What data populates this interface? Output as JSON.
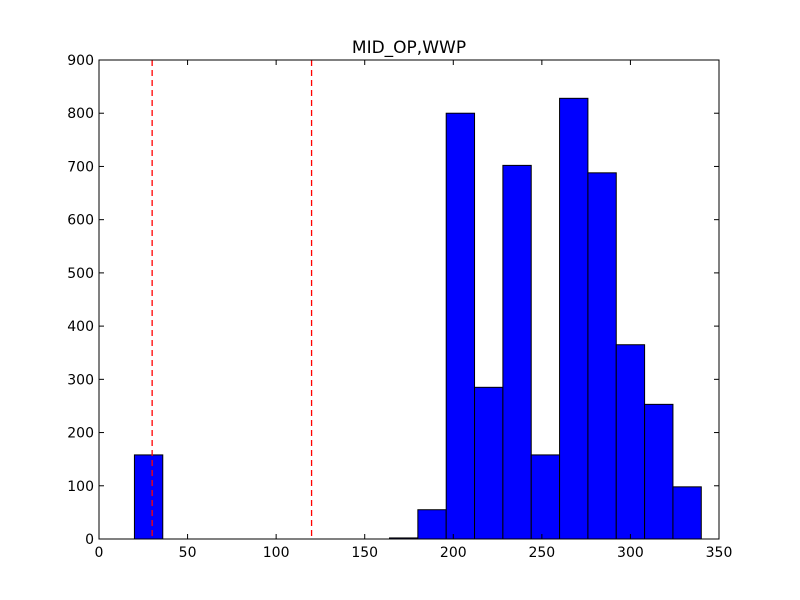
{
  "chart_data": {
    "type": "bar",
    "title": "MID_OP,WWP",
    "xlabel": "",
    "ylabel": "",
    "xlim": [
      0,
      350
    ],
    "ylim": [
      0,
      900
    ],
    "xticks": [
      0,
      50,
      100,
      150,
      200,
      250,
      300,
      350
    ],
    "yticks": [
      0,
      100,
      200,
      300,
      400,
      500,
      600,
      700,
      800,
      900
    ],
    "bin_edges": [
      20,
      36,
      52,
      68,
      84,
      100,
      116,
      132,
      148,
      164,
      180,
      196,
      212,
      228,
      244,
      260,
      276,
      292,
      308,
      324,
      340
    ],
    "counts": [
      158,
      0,
      0,
      0,
      0,
      0,
      0,
      0,
      0,
      2,
      55,
      800,
      285,
      702,
      158,
      828,
      688,
      365,
      253,
      98
    ],
    "vlines": [
      30,
      120
    ],
    "grid": false,
    "bar_color": "#0000ff",
    "edge_color": "#000000",
    "vline_color": "#ff0000"
  }
}
